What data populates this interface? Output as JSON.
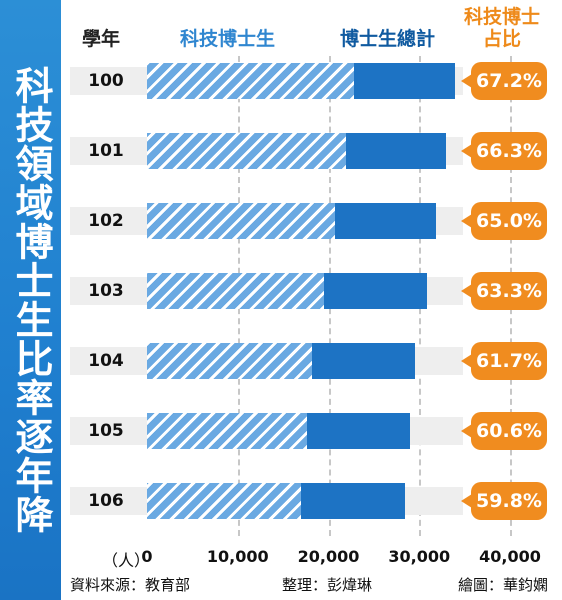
{
  "sidebar": {
    "title": "科技領域博士生比率逐年降"
  },
  "header": {
    "year": "學年",
    "tech": "科技博士生",
    "total": "博士生總計",
    "share_line1": "科技博士",
    "share_line2": "占比"
  },
  "axis": {
    "unit": "（人）",
    "ticks": [
      "0",
      "10,000",
      "20,000",
      "30,000",
      "40,000"
    ]
  },
  "colors": {
    "sidebar": "#1f7fcf",
    "total_bar": "#1d73c4",
    "tech_bar": "#6aa9e2",
    "badge": "#f08c1f"
  },
  "footer": {
    "source": "資料來源：教育部",
    "editor": "整理：彭煒琳",
    "artist": "繪圖：華鈞嫻"
  },
  "chart_data": {
    "type": "bar",
    "categories": [
      "100",
      "101",
      "102",
      "103",
      "104",
      "105",
      "106"
    ],
    "series": [
      {
        "name": "科技博士生",
        "values": [
          22800,
          21900,
          20700,
          19500,
          18200,
          17600,
          17000
        ]
      },
      {
        "name": "博士生總計",
        "values": [
          33900,
          33000,
          31800,
          30800,
          29500,
          29000,
          28400
        ]
      }
    ],
    "share_labels": [
      "67.2%",
      "66.3%",
      "65.0%",
      "63.3%",
      "61.7%",
      "60.6%",
      "59.8%"
    ],
    "xlim": [
      0,
      40000
    ],
    "title": "科技領域博士生比率逐年降",
    "grid": true
  }
}
